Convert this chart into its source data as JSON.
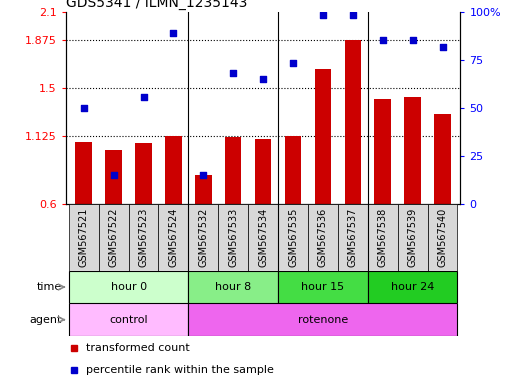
{
  "title": "GDS5341 / ILMN_1235143",
  "samples": [
    "GSM567521",
    "GSM567522",
    "GSM567523",
    "GSM567524",
    "GSM567532",
    "GSM567533",
    "GSM567534",
    "GSM567535",
    "GSM567536",
    "GSM567537",
    "GSM567538",
    "GSM567539",
    "GSM567540"
  ],
  "bar_values": [
    1.08,
    1.02,
    1.07,
    1.125,
    0.82,
    1.12,
    1.105,
    1.13,
    1.65,
    1.875,
    1.42,
    1.43,
    1.3
  ],
  "scatter_values": [
    1.35,
    0.82,
    1.43,
    1.93,
    0.82,
    1.62,
    1.57,
    1.7,
    2.07,
    2.07,
    1.88,
    1.88,
    1.82
  ],
  "bar_color": "#cc0000",
  "scatter_color": "#0000cc",
  "ylim_left": [
    0.6,
    2.1
  ],
  "ylim_right": [
    0,
    100
  ],
  "yticks_left": [
    0.6,
    1.125,
    1.5,
    1.875,
    2.1
  ],
  "yticks_right": [
    0,
    25,
    50,
    75,
    100
  ],
  "ytick_labels_left": [
    "0.6",
    "1.125",
    "1.5",
    "1.875",
    "2.1"
  ],
  "ytick_labels_right": [
    "0",
    "25",
    "50",
    "75",
    "100%"
  ],
  "hlines": [
    1.125,
    1.5,
    1.875
  ],
  "group_separators": [
    3.5,
    6.5,
    9.5
  ],
  "time_groups": [
    {
      "label": "hour 0",
      "start": 0,
      "end": 4,
      "color": "#ccffcc"
    },
    {
      "label": "hour 8",
      "start": 4,
      "end": 7,
      "color": "#88ee88"
    },
    {
      "label": "hour 15",
      "start": 7,
      "end": 10,
      "color": "#44dd44"
    },
    {
      "label": "hour 24",
      "start": 10,
      "end": 13,
      "color": "#22cc22"
    }
  ],
  "agent_groups": [
    {
      "label": "control",
      "start": 0,
      "end": 4,
      "color": "#ffbbff"
    },
    {
      "label": "rotenone",
      "start": 4,
      "end": 13,
      "color": "#ee66ee"
    }
  ],
  "legend_items": [
    {
      "label": "transformed count",
      "color": "#cc0000"
    },
    {
      "label": "percentile rank within the sample",
      "color": "#0000cc"
    }
  ],
  "xtick_bg": "#d8d8d8",
  "plot_bg": "#ffffff",
  "fig_bg": "#ffffff",
  "bar_width": 0.55,
  "xlim": [
    -0.6,
    12.6
  ],
  "title_fontsize": 10,
  "axis_fontsize": 8,
  "tick_fontsize": 7,
  "legend_fontsize": 8
}
